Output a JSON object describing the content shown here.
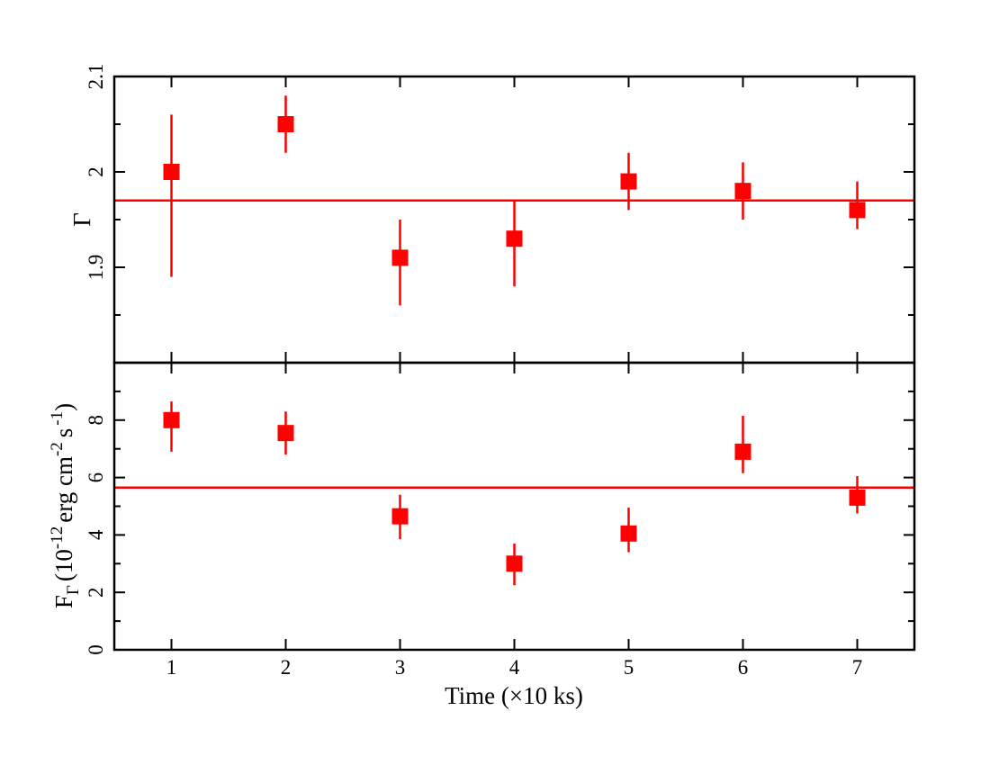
{
  "chart_data": [
    {
      "type": "scatter",
      "panel": "top",
      "ylabel": "Γ",
      "xlim": [
        0.5,
        7.5
      ],
      "ylim": [
        1.8,
        2.1
      ],
      "yticks": [
        "1.9",
        "2",
        "2.1"
      ],
      "color": "#ff0000",
      "series": [
        {
          "x": [
            1,
            2,
            3,
            4,
            5,
            6,
            7
          ],
          "y": [
            2.0,
            2.05,
            1.91,
            1.93,
            1.99,
            1.98,
            1.96
          ],
          "err_low": [
            1.89,
            2.02,
            1.86,
            1.88,
            1.96,
            1.95,
            1.94
          ],
          "err_high": [
            2.06,
            2.08,
            1.95,
            1.97,
            2.02,
            2.01,
            1.99
          ]
        }
      ],
      "reference_line": 1.97
    },
    {
      "type": "scatter",
      "panel": "bottom",
      "ylabel_main": "F",
      "ylabel_sub": "Γ",
      "ylabel_rest": "(10",
      "ylabel_exp1": "-12",
      "ylabel_mid": "erg cm",
      "ylabel_exp2": "-2",
      "ylabel_s": "s",
      "ylabel_exp3": "-1",
      "ylabel_close": ")",
      "xlabel": "Time (×10 ks)",
      "xlim": [
        0.5,
        7.5
      ],
      "ylim": [
        0,
        10
      ],
      "xticks": [
        "1",
        "2",
        "3",
        "4",
        "5",
        "6",
        "7"
      ],
      "yticks": [
        "0",
        "2",
        "4",
        "6",
        "8"
      ],
      "color": "#ff0000",
      "series": [
        {
          "x": [
            1,
            2,
            3,
            4,
            5,
            6,
            7
          ],
          "y": [
            8.0,
            7.55,
            4.65,
            3.0,
            4.05,
            6.9,
            5.3
          ],
          "err_low": [
            6.9,
            6.8,
            3.85,
            2.25,
            3.4,
            6.15,
            4.75
          ],
          "err_high": [
            8.65,
            8.3,
            5.4,
            3.7,
            4.95,
            8.15,
            6.05
          ]
        }
      ],
      "reference_line": 5.65
    }
  ]
}
